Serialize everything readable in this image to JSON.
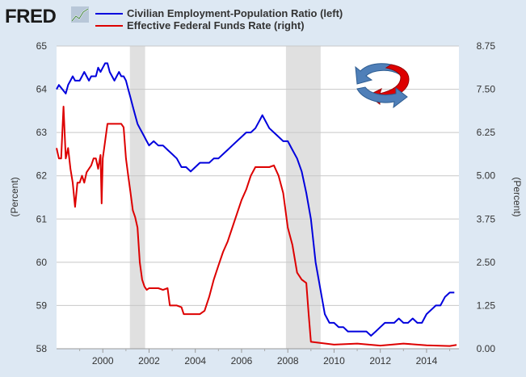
{
  "header": {
    "logo_text": "FRED"
  },
  "chart_data": {
    "type": "line",
    "title": "",
    "x_range": [
      1998.0,
      2015.4
    ],
    "x_ticks": [
      "2000",
      "2002",
      "2004",
      "2006",
      "2008",
      "2010",
      "2012",
      "2014"
    ],
    "x_tick_values": [
      2000,
      2002,
      2004,
      2006,
      2008,
      2010,
      2012,
      2014
    ],
    "y_left": {
      "label": "(Percent)",
      "range": [
        58,
        65
      ],
      "ticks": [
        "58",
        "59",
        "60",
        "61",
        "62",
        "63",
        "64",
        "65"
      ],
      "tick_values": [
        58,
        59,
        60,
        61,
        62,
        63,
        64,
        65
      ]
    },
    "y_right": {
      "label": "(Percent)",
      "range": [
        0,
        8.75
      ],
      "ticks": [
        "0.00",
        "1.25",
        "2.50",
        "3.75",
        "5.00",
        "6.25",
        "7.50",
        "8.75"
      ],
      "tick_values": [
        0,
        1.25,
        2.5,
        3.75,
        5.0,
        6.25,
        7.5,
        8.75
      ]
    },
    "grid": "horizontal",
    "legend_placement": "top",
    "recessions": [
      {
        "start": 2001.17,
        "end": 2001.83
      },
      {
        "start": 2007.92,
        "end": 2009.42
      }
    ],
    "series": [
      {
        "name": "Civilian Employment-Population Ratio (left)",
        "axis": "left",
        "color": "#0000dd",
        "x": [
          1998.0,
          1998.1,
          1998.25,
          1998.4,
          1998.5,
          1998.6,
          1998.7,
          1998.8,
          1998.9,
          1999.0,
          1999.1,
          1999.2,
          1999.3,
          1999.4,
          1999.5,
          1999.6,
          1999.7,
          1999.8,
          1999.9,
          2000.0,
          2000.1,
          2000.2,
          2000.3,
          2000.4,
          2000.5,
          2000.6,
          2000.7,
          2000.8,
          2000.9,
          2001.0,
          2001.1,
          2001.2,
          2001.3,
          2001.4,
          2001.5,
          2001.6,
          2001.7,
          2001.8,
          2001.9,
          2002.0,
          2002.2,
          2002.4,
          2002.6,
          2002.8,
          2003.0,
          2003.2,
          2003.4,
          2003.6,
          2003.8,
          2004.0,
          2004.2,
          2004.4,
          2004.6,
          2004.8,
          2005.0,
          2005.2,
          2005.4,
          2005.6,
          2005.8,
          2006.0,
          2006.2,
          2006.4,
          2006.6,
          2006.8,
          2006.9,
          2007.0,
          2007.2,
          2007.4,
          2007.6,
          2007.8,
          2008.0,
          2008.2,
          2008.4,
          2008.6,
          2008.8,
          2009.0,
          2009.2,
          2009.4,
          2009.6,
          2009.8,
          2010.0,
          2010.2,
          2010.4,
          2010.6,
          2010.8,
          2011.0,
          2011.2,
          2011.4,
          2011.6,
          2011.8,
          2012.0,
          2012.2,
          2012.4,
          2012.6,
          2012.8,
          2013.0,
          2013.2,
          2013.4,
          2013.6,
          2013.8,
          2014.0,
          2014.2,
          2014.4,
          2014.6,
          2014.8,
          2015.0,
          2015.2
        ],
        "values": [
          64.0,
          64.1,
          64.0,
          63.9,
          64.1,
          64.2,
          64.3,
          64.2,
          64.2,
          64.2,
          64.3,
          64.4,
          64.3,
          64.2,
          64.3,
          64.3,
          64.3,
          64.5,
          64.4,
          64.5,
          64.6,
          64.6,
          64.4,
          64.3,
          64.2,
          64.3,
          64.4,
          64.3,
          64.3,
          64.2,
          64.0,
          63.8,
          63.6,
          63.4,
          63.2,
          63.1,
          63.0,
          62.9,
          62.8,
          62.7,
          62.8,
          62.7,
          62.7,
          62.6,
          62.5,
          62.4,
          62.2,
          62.2,
          62.1,
          62.2,
          62.3,
          62.3,
          62.3,
          62.4,
          62.4,
          62.5,
          62.6,
          62.7,
          62.8,
          62.9,
          63.0,
          63.0,
          63.1,
          63.3,
          63.4,
          63.3,
          63.1,
          63.0,
          62.9,
          62.8,
          62.8,
          62.6,
          62.4,
          62.1,
          61.6,
          61.0,
          60.0,
          59.4,
          58.8,
          58.6,
          58.6,
          58.5,
          58.5,
          58.4,
          58.4,
          58.4,
          58.4,
          58.4,
          58.3,
          58.4,
          58.5,
          58.6,
          58.6,
          58.6,
          58.7,
          58.6,
          58.6,
          58.7,
          58.6,
          58.6,
          58.8,
          58.9,
          59.0,
          59.0,
          59.2,
          59.3,
          59.3
        ]
      },
      {
        "name": "Effective Federal Funds Rate (right)",
        "axis": "right",
        "color": "#dd0000",
        "x": [
          1998.0,
          1998.1,
          1998.2,
          1998.3,
          1998.4,
          1998.5,
          1998.6,
          1998.7,
          1998.8,
          1998.9,
          1999.0,
          1999.1,
          1999.2,
          1999.3,
          1999.4,
          1999.5,
          1999.6,
          1999.7,
          1999.8,
          1999.9,
          1999.95,
          2000.0,
          2000.1,
          2000.2,
          2000.3,
          2000.4,
          2000.5,
          2000.6,
          2000.8,
          2000.9,
          2001.0,
          2001.1,
          2001.2,
          2001.3,
          2001.4,
          2001.5,
          2001.6,
          2001.7,
          2001.8,
          2001.9,
          2002.0,
          2002.2,
          2002.4,
          2002.6,
          2002.8,
          2002.9,
          2003.0,
          2003.2,
          2003.4,
          2003.5,
          2003.6,
          2003.8,
          2004.0,
          2004.2,
          2004.4,
          2004.6,
          2004.8,
          2005.0,
          2005.2,
          2005.4,
          2005.6,
          2005.8,
          2006.0,
          2006.2,
          2006.4,
          2006.6,
          2006.8,
          2007.0,
          2007.2,
          2007.4,
          2007.6,
          2007.8,
          2008.0,
          2008.2,
          2008.4,
          2008.6,
          2008.8,
          2008.9,
          2009.0,
          2009.5,
          2010.0,
          2011.0,
          2012.0,
          2013.0,
          2014.0,
          2015.0,
          2015.3
        ],
        "values": [
          5.8,
          5.5,
          5.5,
          7.0,
          5.5,
          5.8,
          5.2,
          4.8,
          4.1,
          4.8,
          4.8,
          5.0,
          4.8,
          5.1,
          5.2,
          5.3,
          5.5,
          5.5,
          5.2,
          5.6,
          4.2,
          5.5,
          6.0,
          6.5,
          6.5,
          6.5,
          6.5,
          6.5,
          6.5,
          6.4,
          5.5,
          5.0,
          4.5,
          4.0,
          3.8,
          3.5,
          2.5,
          2.0,
          1.8,
          1.7,
          1.75,
          1.75,
          1.75,
          1.7,
          1.75,
          1.25,
          1.25,
          1.25,
          1.2,
          1.0,
          1.0,
          1.0,
          1.0,
          1.0,
          1.1,
          1.5,
          2.0,
          2.4,
          2.8,
          3.1,
          3.5,
          3.9,
          4.3,
          4.6,
          5.0,
          5.25,
          5.25,
          5.25,
          5.25,
          5.3,
          5.0,
          4.5,
          3.5,
          3.0,
          2.2,
          2.0,
          1.9,
          1.0,
          0.2,
          0.16,
          0.12,
          0.15,
          0.09,
          0.15,
          0.1,
          0.08,
          0.11
        ]
      }
    ]
  },
  "icons": {
    "swap_axes": "circular-arrows-icon",
    "blue_arrow_color": "#4f7fb8",
    "red_arrow_color": "#dd0000"
  }
}
